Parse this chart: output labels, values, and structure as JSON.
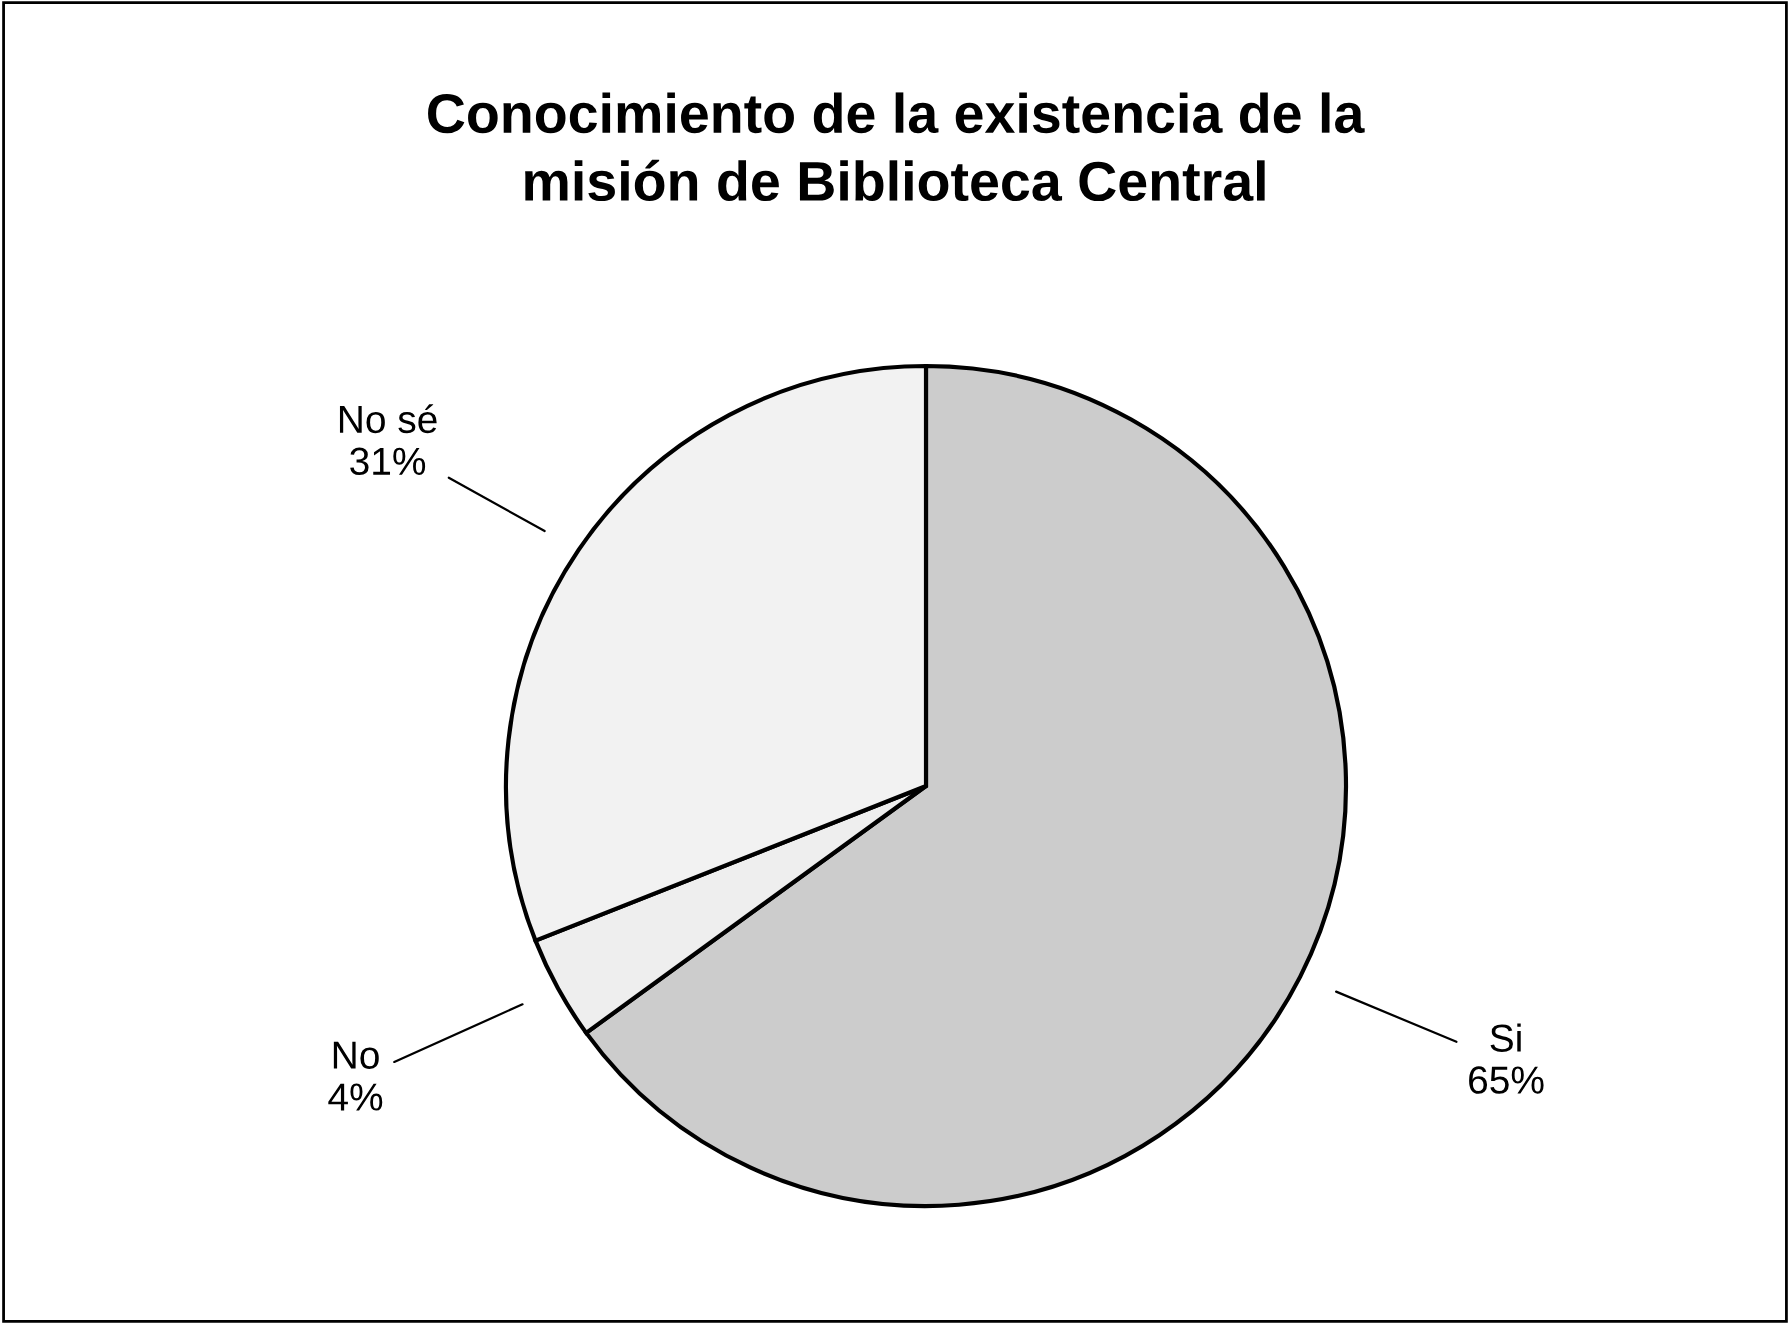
{
  "chart_data": {
    "type": "pie",
    "title": "Conocimiento de la existencia de la\nmisión de Biblioteca Central",
    "categories": [
      "Si",
      "No",
      "No sé"
    ],
    "values": [
      65,
      4,
      31
    ],
    "colors": [
      "#cccccc",
      "#eeeeee",
      "#f2f2f2"
    ],
    "value_labels": [
      "65%",
      "4%",
      "31%"
    ]
  }
}
